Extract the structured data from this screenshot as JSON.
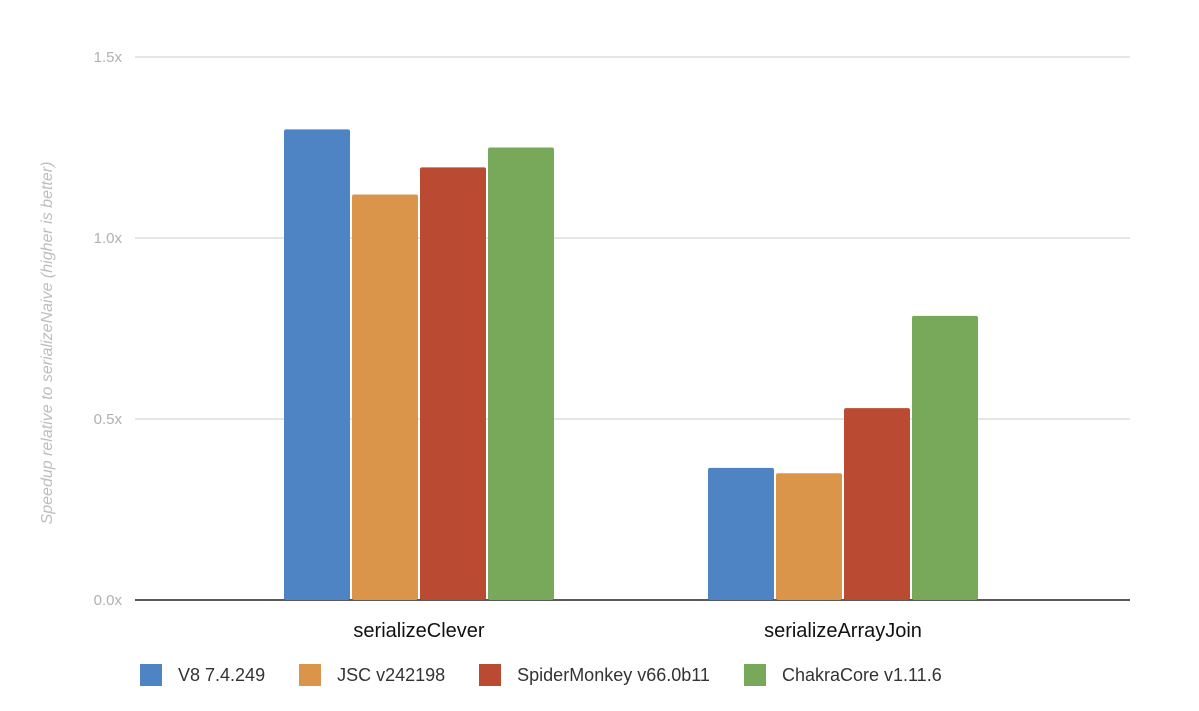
{
  "chart_data": {
    "type": "bar",
    "title": "",
    "ylabel": "Speedup relative to serializeNaive (higher is better)",
    "xlabel": "",
    "ylim": [
      0,
      1.5
    ],
    "yticks": [
      0,
      0.5,
      1.0,
      1.5
    ],
    "ytick_labels": [
      "0.0x",
      "0.5x",
      "1.0x",
      "1.5x"
    ],
    "grid": true,
    "legend_position": "bottom",
    "categories": [
      "serializeClever",
      "serializeArrayJoin"
    ],
    "series": [
      {
        "name": "V8 7.4.249",
        "color": "#4e84c4",
        "values": [
          1.3,
          0.365
        ]
      },
      {
        "name": "JSC v242198",
        "color": "#db954b",
        "values": [
          1.12,
          0.35
        ]
      },
      {
        "name": "SpiderMonkey v66.0b11",
        "color": "#bb4a33",
        "values": [
          1.195,
          0.53
        ]
      },
      {
        "name": "ChakraCore v1.11.6",
        "color": "#78a85a",
        "values": [
          1.25,
          0.785
        ]
      }
    ]
  }
}
